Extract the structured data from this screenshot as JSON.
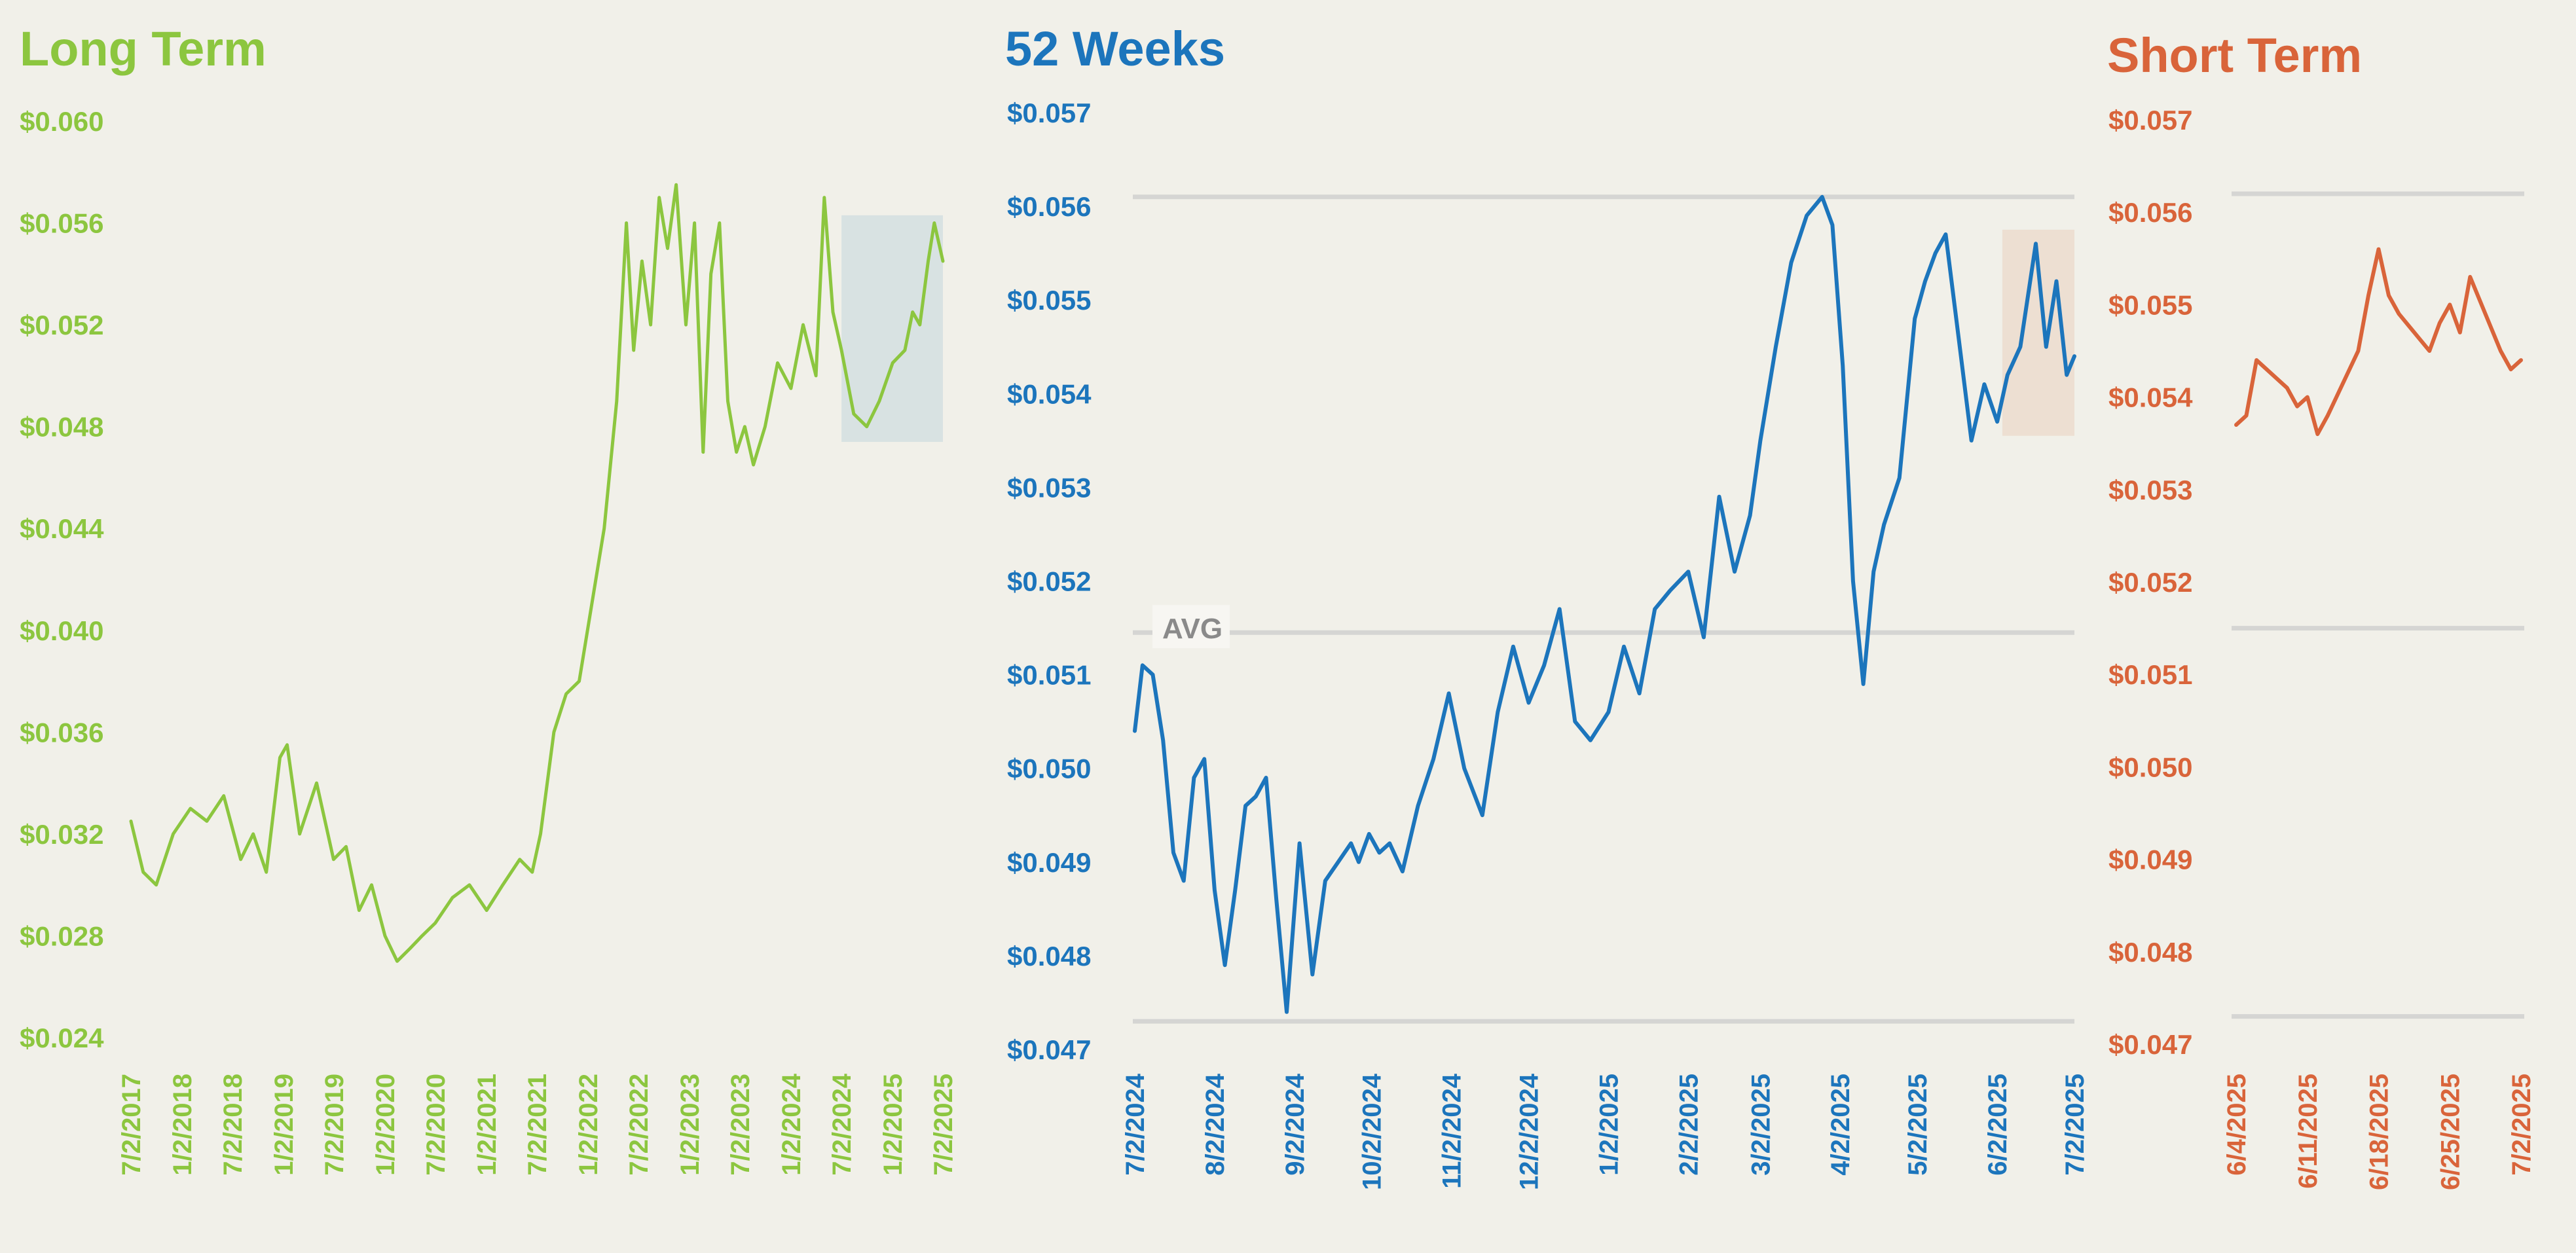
{
  "colors": {
    "background": "#f1f0e9",
    "long_term": "#8cc63f",
    "weeks_52": "#1c75bc",
    "short_term": "#d9643a",
    "gridline": "#d5d5d3",
    "highlight_long": "#d8e2e2",
    "highlight_52": "#eddfd2"
  },
  "chart_data": [
    {
      "id": "long",
      "type": "line",
      "title": "Long Term",
      "ylim": [
        0.024,
        0.06
      ],
      "yticks": [
        "$0.060",
        "$0.056",
        "$0.052",
        "$0.048",
        "$0.044",
        "$0.040",
        "$0.036",
        "$0.032",
        "$0.028",
        "$0.024"
      ],
      "xticks": [
        "7/2/2017",
        "1/2/2018",
        "7/2/2018",
        "1/2/2019",
        "7/2/2019",
        "1/2/2020",
        "7/2/2020",
        "1/2/2021",
        "7/2/2021",
        "1/2/2022",
        "7/2/2022",
        "1/2/2023",
        "7/2/2023",
        "1/2/2024",
        "7/2/2024",
        "1/2/2025",
        "7/2/2025"
      ],
      "highlight": {
        "x_from": "7/2/2024",
        "x_to": "7/2/2025",
        "y_from": 0.0474,
        "y_to": 0.0563
      },
      "series": [
        {
          "x": [
            "7/2/2017",
            "8/15/2017",
            "10/1/2017",
            "12/1/2017",
            "2/1/2018",
            "4/1/2018",
            "6/1/2018",
            "8/1/2018",
            "9/15/2018",
            "11/1/2018",
            "12/20/2018",
            "1/15/2019",
            "3/1/2019",
            "5/1/2019",
            "7/1/2019",
            "8/15/2019",
            "10/1/2019",
            "11/15/2019",
            "1/2/2020",
            "2/15/2020",
            "4/1/2020",
            "5/15/2020",
            "7/1/2020",
            "9/1/2020",
            "11/1/2020",
            "1/2/2021",
            "3/1/2021",
            "5/1/2021",
            "6/15/2021",
            "7/15/2021",
            "9/1/2021",
            "10/15/2021",
            "12/1/2021",
            "1/15/2022",
            "3/1/2022",
            "4/15/2022",
            "5/20/2022",
            "6/15/2022",
            "7/15/2022",
            "8/15/2022",
            "9/15/2022",
            "10/15/2022",
            "11/15/2022",
            "12/20/2022",
            "1/20/2023",
            "2/20/2023",
            "3/20/2023",
            "4/20/2023",
            "5/20/2023",
            "6/20/2023",
            "7/20/2023",
            "8/20/2023",
            "10/1/2023",
            "11/15/2023",
            "1/2/2024",
            "2/15/2024",
            "4/1/2024",
            "5/1/2024",
            "6/1/2024",
            "7/2/2024",
            "8/15/2024",
            "10/1/2024",
            "11/15/2024",
            "1/2/2025",
            "2/15/2025",
            "3/15/2025",
            "4/10/2025",
            "5/10/2025",
            "6/1/2025",
            "7/2/2025"
          ],
          "y": [
            0.0325,
            0.0305,
            0.03,
            0.032,
            0.033,
            0.0325,
            0.0335,
            0.031,
            0.032,
            0.0305,
            0.035,
            0.0355,
            0.032,
            0.034,
            0.031,
            0.0315,
            0.029,
            0.03,
            0.028,
            0.027,
            0.0275,
            0.028,
            0.0285,
            0.0295,
            0.03,
            0.029,
            0.03,
            0.031,
            0.0305,
            0.032,
            0.036,
            0.0375,
            0.038,
            0.041,
            0.044,
            0.049,
            0.056,
            0.051,
            0.0545,
            0.052,
            0.057,
            0.055,
            0.0575,
            0.052,
            0.056,
            0.047,
            0.054,
            0.056,
            0.049,
            0.047,
            0.048,
            0.0465,
            0.048,
            0.0505,
            0.0495,
            0.052,
            0.05,
            0.057,
            0.0525,
            0.051,
            0.0485,
            0.048,
            0.049,
            0.0505,
            0.051,
            0.0525,
            0.052,
            0.0545,
            0.056,
            0.0545
          ]
        }
      ]
    },
    {
      "id": "weeks52",
      "type": "line",
      "title": "52 Weeks",
      "ylim": [
        0.047,
        0.057
      ],
      "yticks": [
        "$0.057",
        "$0.056",
        "$0.055",
        "$0.054",
        "$0.053",
        "$0.052",
        "$0.051",
        "$0.050",
        "$0.049",
        "$0.048",
        "$0.047"
      ],
      "xticks": [
        "7/2/2024",
        "8/2/2024",
        "9/2/2024",
        "10/2/2024",
        "11/2/2024",
        "12/2/2024",
        "1/2/2025",
        "2/2/2025",
        "3/2/2025",
        "4/2/2025",
        "5/2/2025",
        "6/2/2025",
        "7/2/2025"
      ],
      "reference_lines": [
        {
          "value": 0.0561
        },
        {
          "value": 0.05145,
          "label": "AVG"
        },
        {
          "value": 0.0473
        }
      ],
      "highlight": {
        "x_from": "6/4/2025",
        "x_to": "7/2/2025",
        "y_from": 0.05355,
        "y_to": 0.05575
      },
      "series": [
        {
          "x": [
            "7/2/2024",
            "7/5/2024",
            "7/9/2024",
            "7/13/2024",
            "7/17/2024",
            "7/21/2024",
            "7/25/2024",
            "7/29/2024",
            "8/2/2024",
            "8/6/2024",
            "8/10/2024",
            "8/14/2024",
            "8/18/2024",
            "8/22/2024",
            "8/26/2024",
            "8/30/2024",
            "9/4/2024",
            "9/9/2024",
            "9/14/2024",
            "9/19/2024",
            "9/24/2024",
            "9/27/2024",
            "10/1/2024",
            "10/5/2024",
            "10/9/2024",
            "10/14/2024",
            "10/20/2024",
            "10/26/2024",
            "11/1/2024",
            "11/7/2024",
            "11/14/2024",
            "11/20/2024",
            "11/26/2024",
            "12/2/2024",
            "12/8/2024",
            "12/14/2024",
            "12/20/2024",
            "12/26/2024",
            "1/2/2025",
            "1/8/2025",
            "1/14/2025",
            "1/20/2025",
            "1/26/2025",
            "2/2/2025",
            "2/8/2025",
            "2/14/2025",
            "2/20/2025",
            "2/26/2025",
            "3/2/2025",
            "3/8/2025",
            "3/14/2025",
            "3/20/2025",
            "3/26/2025",
            "3/30/2025",
            "4/3/2025",
            "4/7/2025",
            "4/11/2025",
            "4/15/2025",
            "4/19/2025",
            "4/25/2025",
            "5/1/2025",
            "5/5/2025",
            "5/9/2025",
            "5/13/2025",
            "5/18/2025",
            "5/23/2025",
            "5/28/2025",
            "6/2/2025",
            "6/6/2025",
            "6/11/2025",
            "6/17/2025",
            "6/21/2025",
            "6/25/2025",
            "6/29/2025",
            "7/2/2025"
          ],
          "y": [
            0.0504,
            0.0511,
            0.051,
            0.0503,
            0.0491,
            0.0488,
            0.0499,
            0.0501,
            0.0487,
            0.0479,
            0.0487,
            0.0496,
            0.0497,
            0.0499,
            0.0486,
            0.0474,
            0.0492,
            0.0478,
            0.0488,
            0.049,
            0.0492,
            0.049,
            0.0493,
            0.0491,
            0.0492,
            0.0489,
            0.0496,
            0.0501,
            0.0508,
            0.05,
            0.0495,
            0.0506,
            0.0513,
            0.0507,
            0.0511,
            0.0517,
            0.0505,
            0.0503,
            0.0506,
            0.0513,
            0.0508,
            0.0517,
            0.0519,
            0.0521,
            0.0514,
            0.0529,
            0.0521,
            0.0527,
            0.0535,
            0.0545,
            0.0554,
            0.0559,
            0.0561,
            0.0558,
            0.0543,
            0.052,
            0.0509,
            0.0521,
            0.0526,
            0.0531,
            0.0548,
            0.0552,
            0.0555,
            0.0557,
            0.0546,
            0.0535,
            0.0541,
            0.0537,
            0.0542,
            0.0545,
            0.0556,
            0.0545,
            0.0552,
            0.0542,
            0.0544
          ]
        }
      ]
    },
    {
      "id": "short",
      "type": "line",
      "title": "Short Term",
      "ylim": [
        0.047,
        0.057
      ],
      "yticks": [
        "$0.057",
        "$0.056",
        "$0.055",
        "$0.054",
        "$0.053",
        "$0.052",
        "$0.051",
        "$0.050",
        "$0.049",
        "$0.048",
        "$0.047"
      ],
      "xticks": [
        "6/4/2025",
        "6/11/2025",
        "6/18/2025",
        "6/25/2025",
        "7/2/2025"
      ],
      "reference_lines": [
        {
          "value": 0.0562
        },
        {
          "value": 0.0515
        },
        {
          "value": 0.0473
        }
      ],
      "series": [
        {
          "x": [
            "6/4/2025",
            "6/5/2025",
            "6/6/2025",
            "6/9/2025",
            "6/10/2025",
            "6/11/2025",
            "6/12/2025",
            "6/13/2025",
            "6/16/2025",
            "6/17/2025",
            "6/18/2025",
            "6/19/2025",
            "6/20/2025",
            "6/23/2025",
            "6/24/2025",
            "6/25/2025",
            "6/26/2025",
            "6/27/2025",
            "6/30/2025",
            "7/1/2025",
            "7/2/2025"
          ],
          "y": [
            0.0537,
            0.0538,
            0.0544,
            0.0541,
            0.0539,
            0.054,
            0.0536,
            0.0538,
            0.0545,
            0.0551,
            0.0556,
            0.0551,
            0.0549,
            0.0545,
            0.0548,
            0.055,
            0.0547,
            0.0553,
            0.0545,
            0.0543,
            0.0544
          ]
        }
      ]
    }
  ]
}
